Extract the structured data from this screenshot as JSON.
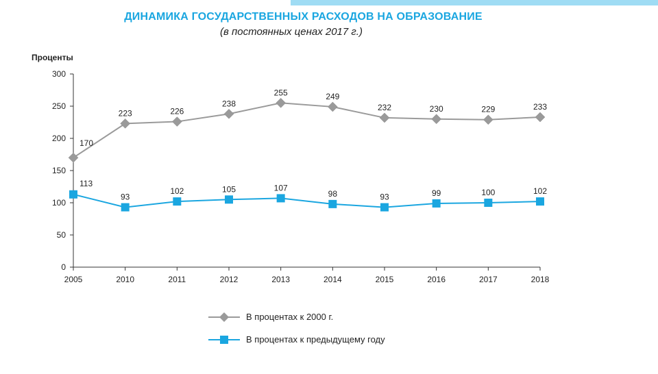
{
  "title": "ДИНАМИКА ГОСУДАРСТВЕННЫХ РАСХОДОВ НА ОБРАЗОВАНИЕ",
  "subtitle": "(в постоянных ценах 2017 г.)",
  "colors": {
    "title": "#1aa6e0",
    "series_gray": "#9a9a9a",
    "series_blue": "#1aa6e0",
    "axis": "#333333"
  },
  "chart_data": {
    "type": "line",
    "ylabel": "Проценты",
    "xlabel": "",
    "ylim": [
      0,
      300
    ],
    "yticks": [
      0,
      50,
      100,
      150,
      200,
      250,
      300
    ],
    "categories": [
      "2005",
      "2010",
      "2011",
      "2012",
      "2013",
      "2014",
      "2015",
      "2016",
      "2017",
      "2018"
    ],
    "grid": false,
    "legend": "bottom",
    "series": [
      {
        "name": "В процентах к 2000 г.",
        "marker": "diamond",
        "color": "#9a9a9a",
        "values": [
          170,
          223,
          226,
          238,
          255,
          249,
          232,
          230,
          229,
          233
        ]
      },
      {
        "name": "В процентах к предыдущему году",
        "marker": "square",
        "color": "#1aa6e0",
        "values": [
          113,
          93,
          102,
          105,
          107,
          98,
          93,
          99,
          100,
          102
        ]
      }
    ]
  }
}
